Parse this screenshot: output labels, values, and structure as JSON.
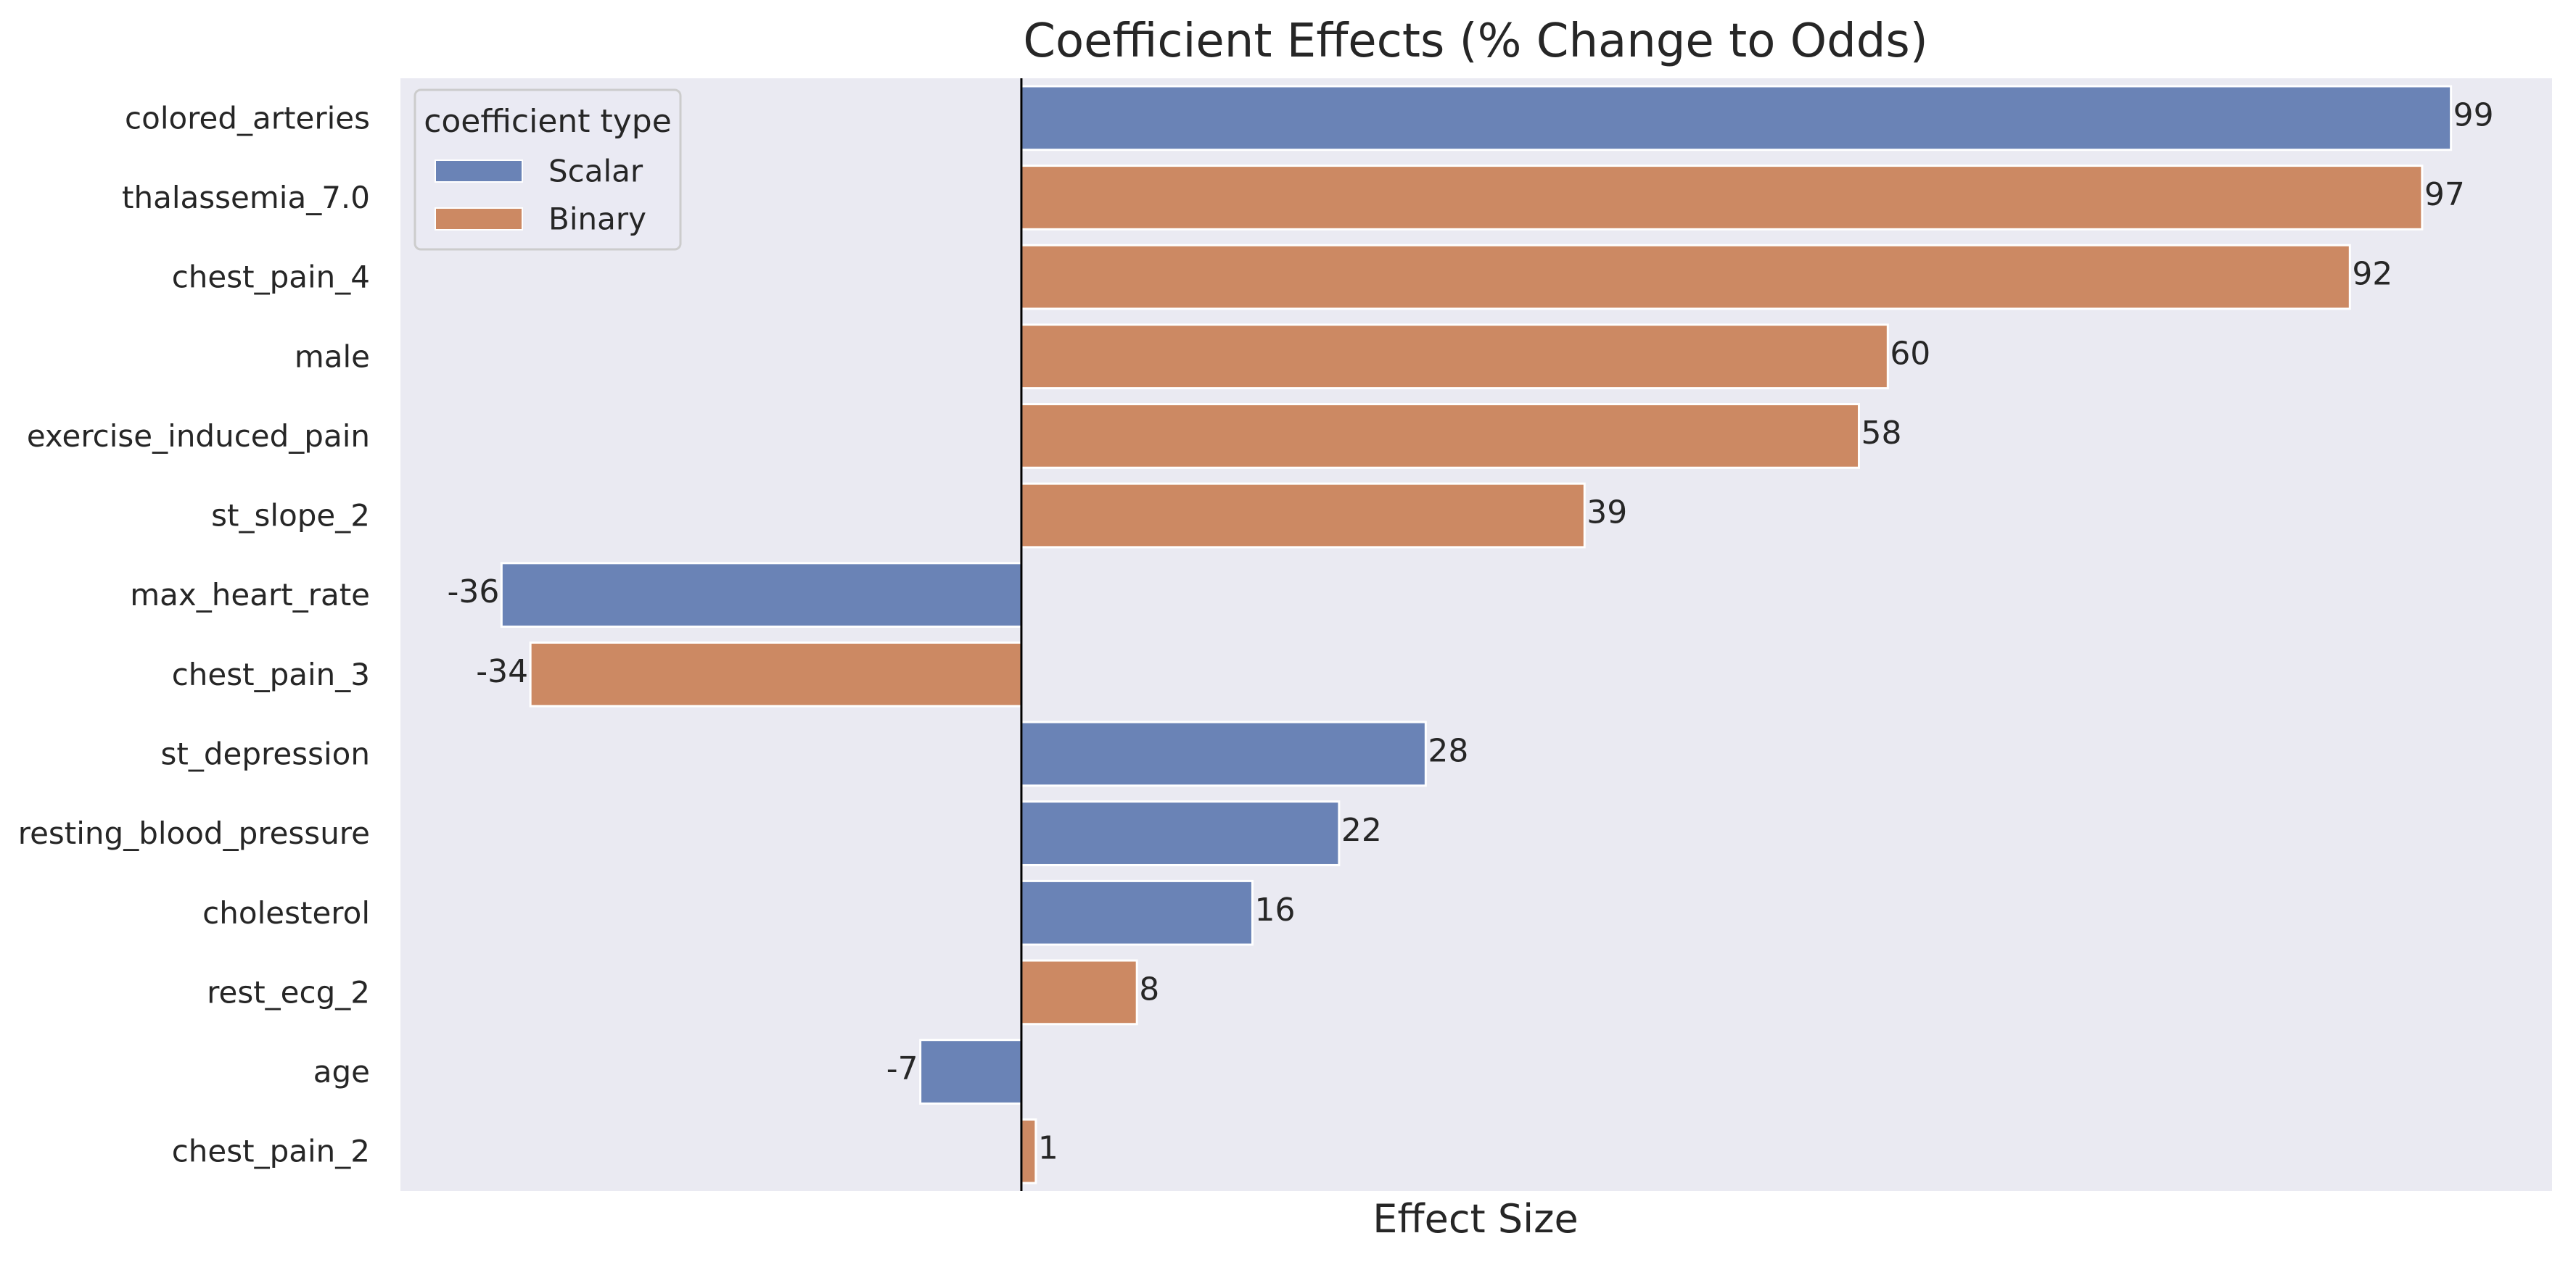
{
  "chart_data": {
    "type": "bar",
    "orientation": "horizontal",
    "title": "Coefficient Effects (% Change to Odds)",
    "xlabel": "Effect Size",
    "ylabel": "",
    "xlim": [
      -43,
      106
    ],
    "grid": false,
    "zero_line": true,
    "legend": {
      "title": "coefficient type",
      "placement": "top-left",
      "entries": [
        {
          "name": "Scalar",
          "color": "#6a83b6"
        },
        {
          "name": "Binary",
          "color": "#cc8963"
        }
      ]
    },
    "categories": [
      "colored_arteries",
      "thalassemia_7.0",
      "chest_pain_4",
      "male",
      "exercise_induced_pain",
      "st_slope_2",
      "max_heart_rate",
      "chest_pain_3",
      "st_depression",
      "resting_blood_pressure",
      "cholesterol",
      "rest_ecg_2",
      "age",
      "chest_pain_2"
    ],
    "values": [
      99,
      97,
      92,
      60,
      58,
      39,
      -36,
      -34,
      28,
      22,
      16,
      8,
      -7,
      1
    ],
    "value_labels": [
      "99",
      "97",
      "92",
      "60",
      "58",
      "39",
      "-36",
      "-34",
      "28",
      "22",
      "16",
      "8",
      "-7",
      "1"
    ],
    "coefficient_type": [
      "Scalar",
      "Binary",
      "Binary",
      "Binary",
      "Binary",
      "Binary",
      "Scalar",
      "Binary",
      "Scalar",
      "Scalar",
      "Scalar",
      "Binary",
      "Scalar",
      "Binary"
    ]
  },
  "colors": {
    "plot_background": "#eaeaf2",
    "zero_line": "#000000",
    "text": "#262626",
    "bar_edge": "#ffffff"
  }
}
